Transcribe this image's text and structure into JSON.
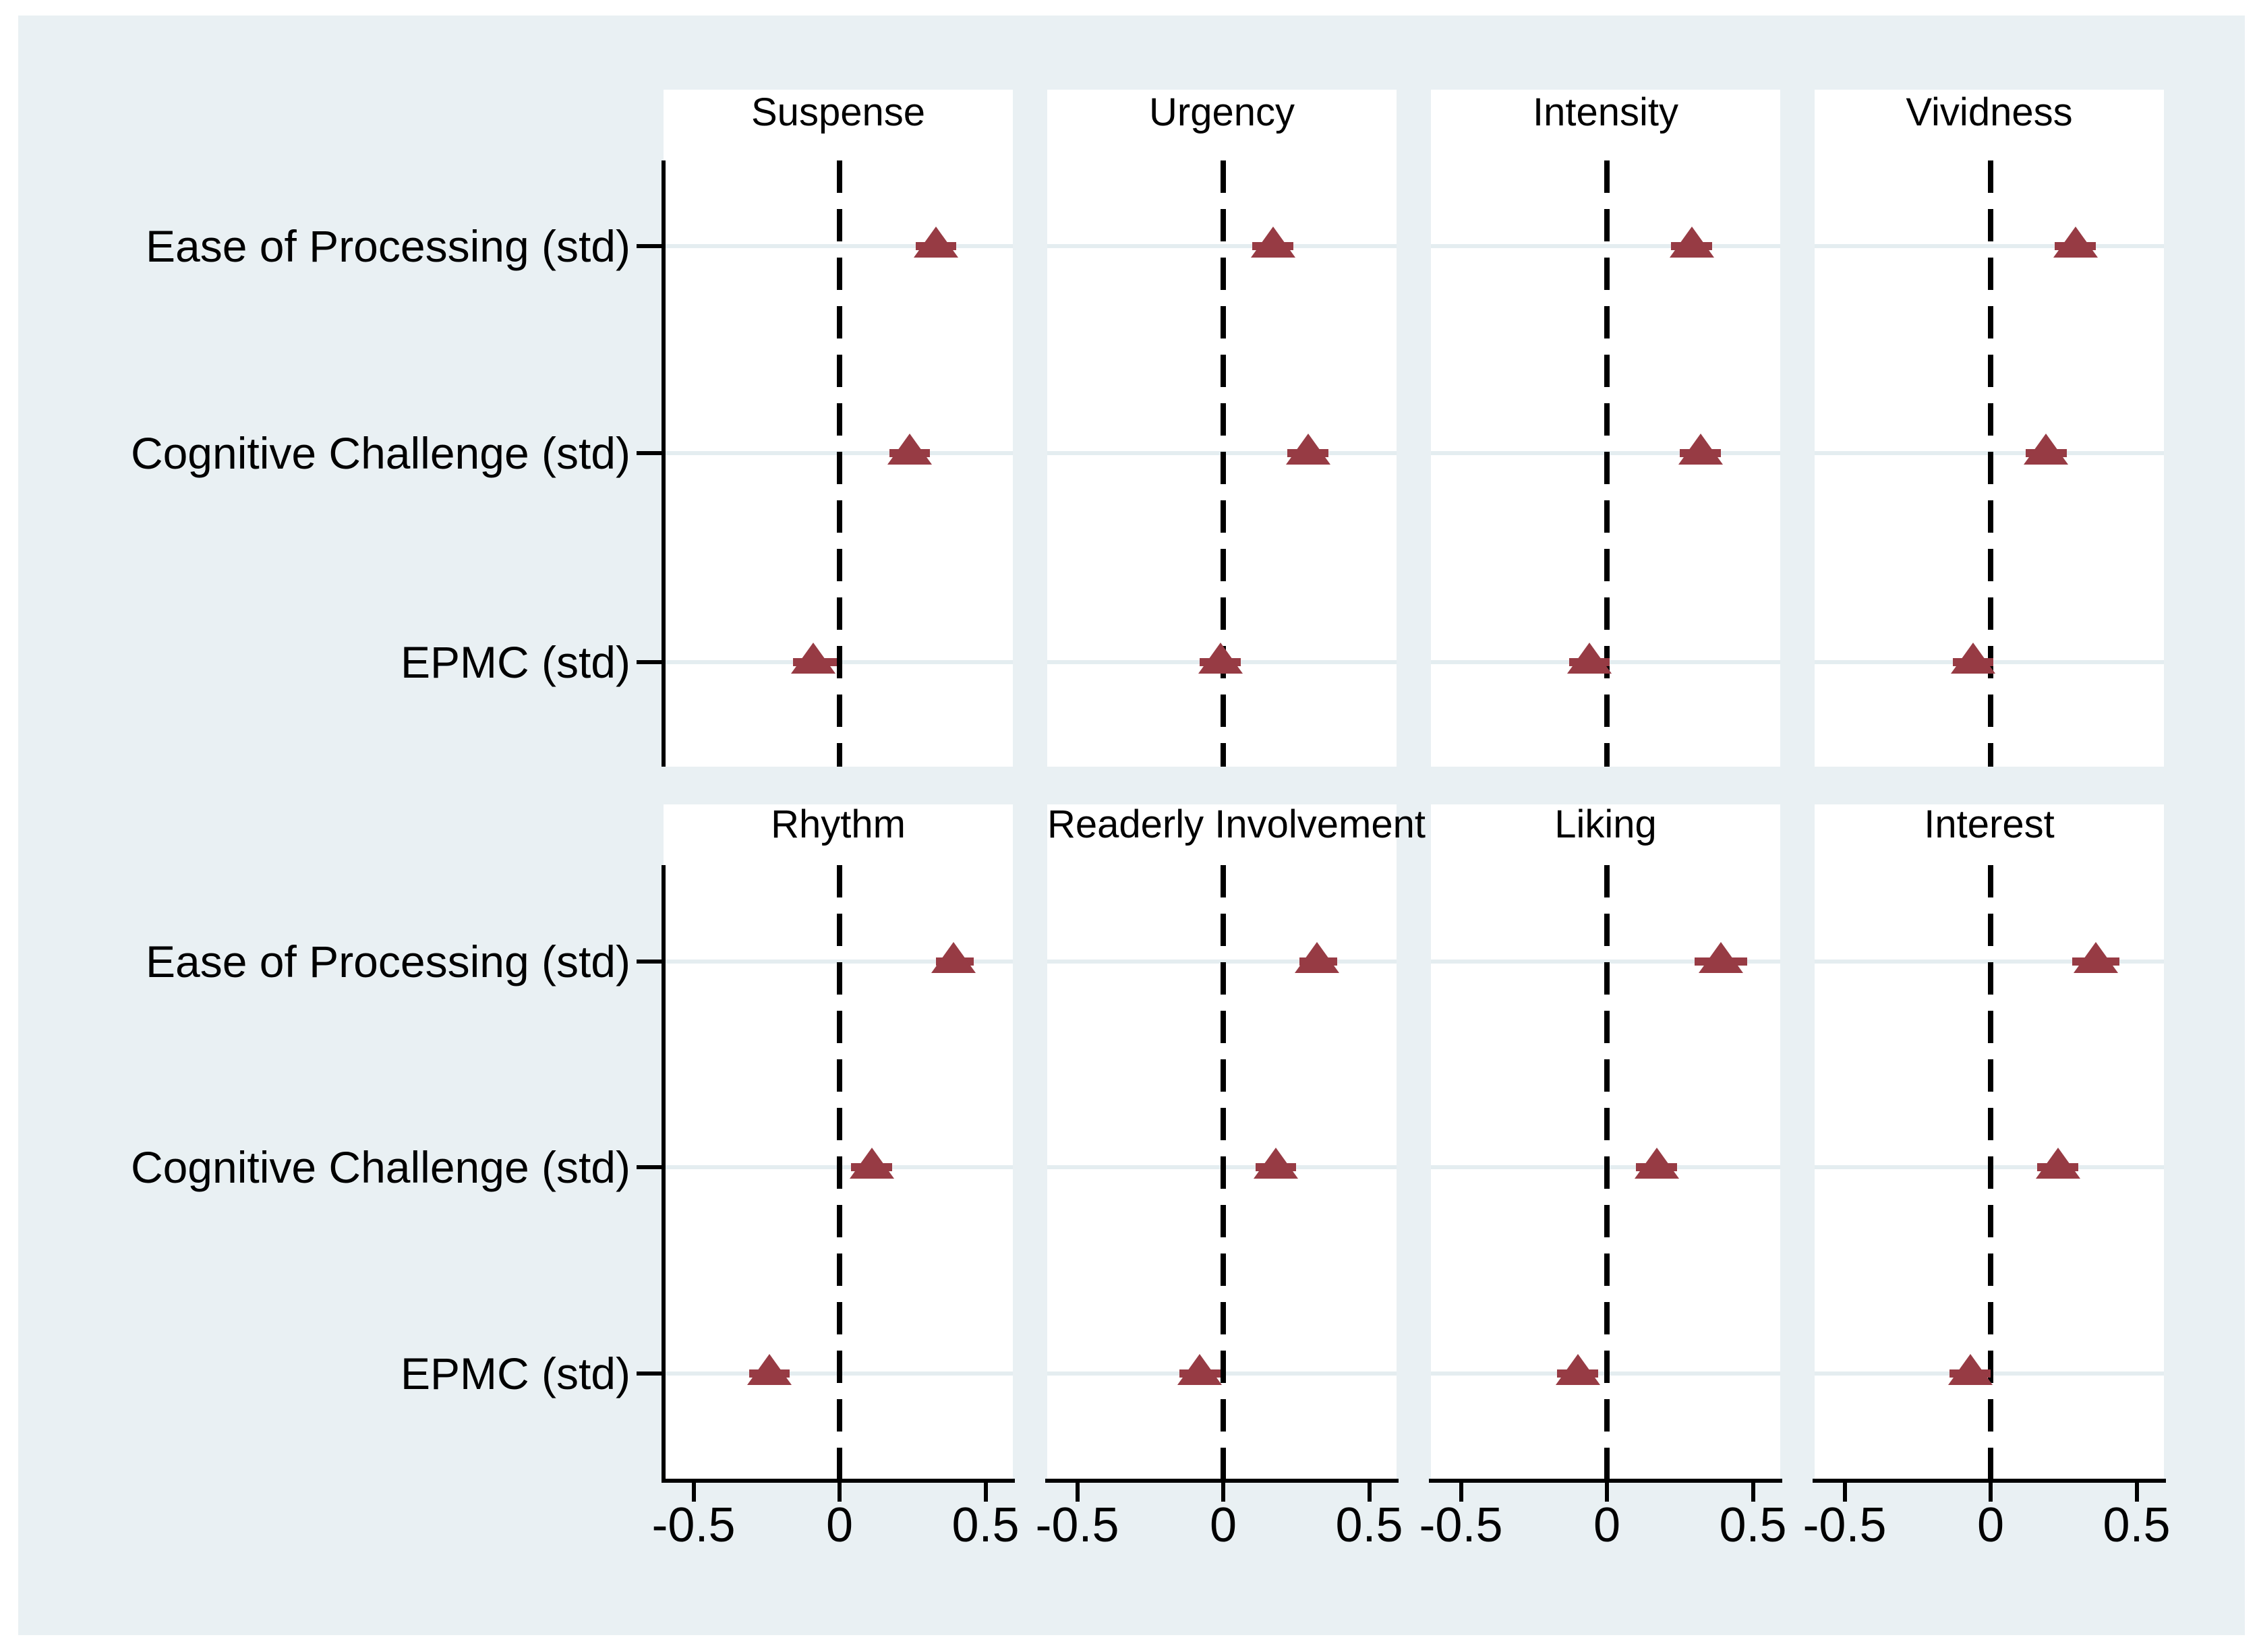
{
  "style": {
    "page_bg": "#ffffff",
    "graph_bg": "#e9f0f3",
    "panel_bg": "#ffffff",
    "grid_color": "#e4edf0",
    "axis_color": "#000000",
    "text_color": "#000000",
    "marker_color": "#973b44"
  },
  "chart_data": {
    "type": "scatter",
    "chart_kind": "coefficient-forest-plot",
    "layout_grid": "2 rows x 4 columns of panels, shared row labels at left, shared x axes under bottom row",
    "row_labels": [
      "Ease of Processing (std)",
      "Cognitive Challenge (std)",
      "EPMC (std)"
    ],
    "x_ticks": [
      -0.5,
      0,
      0.5
    ],
    "x_tick_labels": [
      "-0.5",
      "0",
      "0.5"
    ],
    "xlim": [
      -0.6,
      0.6
    ],
    "zero_reference_line": 0,
    "marker_symbol": "triangle-up",
    "error_bars": "95% confidence intervals, horizontal",
    "grid": "light horizontal gridline at each predictor row",
    "panels": [
      {
        "title": "Suspense",
        "grid_row": 0,
        "grid_col": 0,
        "estimates": [
          {
            "predictor": "Ease of Processing (std)",
            "value": 0.33,
            "ci_low": 0.26,
            "ci_high": 0.4
          },
          {
            "predictor": "Cognitive Challenge (std)",
            "value": 0.24,
            "ci_low": 0.17,
            "ci_high": 0.31
          },
          {
            "predictor": "EPMC (std)",
            "value": -0.09,
            "ci_low": -0.16,
            "ci_high": -0.01
          }
        ]
      },
      {
        "title": "Urgency",
        "grid_row": 0,
        "grid_col": 1,
        "estimates": [
          {
            "predictor": "Ease of Processing (std)",
            "value": 0.17,
            "ci_low": 0.1,
            "ci_high": 0.24
          },
          {
            "predictor": "Cognitive Challenge (std)",
            "value": 0.29,
            "ci_low": 0.22,
            "ci_high": 0.36
          },
          {
            "predictor": "EPMC (std)",
            "value": -0.01,
            "ci_low": -0.08,
            "ci_high": 0.06
          }
        ]
      },
      {
        "title": "Intensity",
        "grid_row": 0,
        "grid_col": 2,
        "estimates": [
          {
            "predictor": "Ease of Processing (std)",
            "value": 0.29,
            "ci_low": 0.22,
            "ci_high": 0.36
          },
          {
            "predictor": "Cognitive Challenge (std)",
            "value": 0.32,
            "ci_low": 0.25,
            "ci_high": 0.39
          },
          {
            "predictor": "EPMC (std)",
            "value": -0.06,
            "ci_low": -0.13,
            "ci_high": 0.01
          }
        ]
      },
      {
        "title": "Vividness",
        "grid_row": 0,
        "grid_col": 3,
        "estimates": [
          {
            "predictor": "Ease of Processing (std)",
            "value": 0.29,
            "ci_low": 0.22,
            "ci_high": 0.36
          },
          {
            "predictor": "Cognitive Challenge (std)",
            "value": 0.19,
            "ci_low": 0.12,
            "ci_high": 0.26
          },
          {
            "predictor": "EPMC (std)",
            "value": -0.06,
            "ci_low": -0.13,
            "ci_high": 0.01
          }
        ]
      },
      {
        "title": "Rhythm",
        "grid_row": 1,
        "grid_col": 0,
        "estimates": [
          {
            "predictor": "Ease of Processing (std)",
            "value": 0.39,
            "ci_low": 0.33,
            "ci_high": 0.46
          },
          {
            "predictor": "Cognitive Challenge (std)",
            "value": 0.11,
            "ci_low": 0.04,
            "ci_high": 0.18
          },
          {
            "predictor": "EPMC (std)",
            "value": -0.24,
            "ci_low": -0.31,
            "ci_high": -0.17
          }
        ]
      },
      {
        "title": "Readerly Involvement",
        "grid_row": 1,
        "grid_col": 1,
        "estimates": [
          {
            "predictor": "Ease of Processing (std)",
            "value": 0.32,
            "ci_low": 0.26,
            "ci_high": 0.39
          },
          {
            "predictor": "Cognitive Challenge (std)",
            "value": 0.18,
            "ci_low": 0.11,
            "ci_high": 0.25
          },
          {
            "predictor": "EPMC (std)",
            "value": -0.08,
            "ci_low": -0.15,
            "ci_high": -0.01
          }
        ]
      },
      {
        "title": "Liking",
        "grid_row": 1,
        "grid_col": 2,
        "estimates": [
          {
            "predictor": "Ease of Processing (std)",
            "value": 0.39,
            "ci_low": 0.3,
            "ci_high": 0.48
          },
          {
            "predictor": "Cognitive Challenge (std)",
            "value": 0.17,
            "ci_low": 0.1,
            "ci_high": 0.24
          },
          {
            "predictor": "EPMC (std)",
            "value": -0.1,
            "ci_low": -0.17,
            "ci_high": -0.03
          }
        ]
      },
      {
        "title": "Interest",
        "grid_row": 1,
        "grid_col": 3,
        "estimates": [
          {
            "predictor": "Ease of Processing (std)",
            "value": 0.36,
            "ci_low": 0.28,
            "ci_high": 0.44
          },
          {
            "predictor": "Cognitive Challenge (std)",
            "value": 0.23,
            "ci_low": 0.16,
            "ci_high": 0.3
          },
          {
            "predictor": "EPMC (std)",
            "value": -0.07,
            "ci_low": -0.14,
            "ci_high": 0.0
          }
        ]
      }
    ]
  }
}
